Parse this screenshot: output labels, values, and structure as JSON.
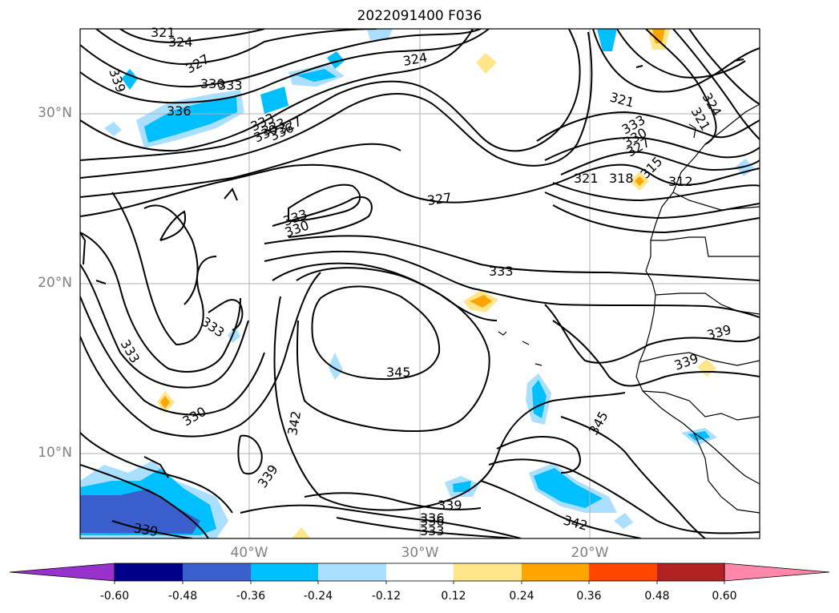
{
  "title": "2022091400 F036",
  "lat_labels": [
    "30°N",
    "20°N",
    "10°N"
  ],
  "lon_labels": [
    "40°W",
    "30°W",
    "20°W"
  ],
  "contour_labels": [
    "321",
    "324",
    "327",
    "330",
    "333",
    "336",
    "339",
    "333",
    "330",
    "333",
    "336",
    "327",
    "324",
    "321",
    "333",
    "330",
    "327",
    "321",
    "318",
    "315",
    "312",
    "324",
    "321",
    "333",
    "327",
    "333",
    "330",
    "333",
    "333",
    "330",
    "339",
    "345",
    "342",
    "336",
    "342",
    "339",
    "339",
    "336",
    "333",
    "339",
    "342",
    "345",
    "339"
  ],
  "colorbar": {
    "tick_labels": [
      "-0.60",
      "-0.48",
      "-0.36",
      "-0.24",
      "-0.12",
      "0.12",
      "0.24",
      "0.36",
      "0.48",
      "0.60"
    ],
    "colors": {
      "lt_minus_0_60": "#9932cc",
      "minus_0_60_to_0_48": "#00008b",
      "minus_0_48_to_0_36": "#3a5fcd",
      "minus_0_36_to_0_24": "#00bfff",
      "minus_0_24_to_0_12": "#aadfff",
      "minus_0_12_to_0_12": "#ffffff",
      "0_12_to_0_24": "#ffe68a",
      "0_24_to_0_36": "#ffa500",
      "0_36_to_0_48": "#ff4500",
      "0_48_to_0_60": "#b22222",
      "gt_0_60": "#ff88aa"
    }
  }
}
